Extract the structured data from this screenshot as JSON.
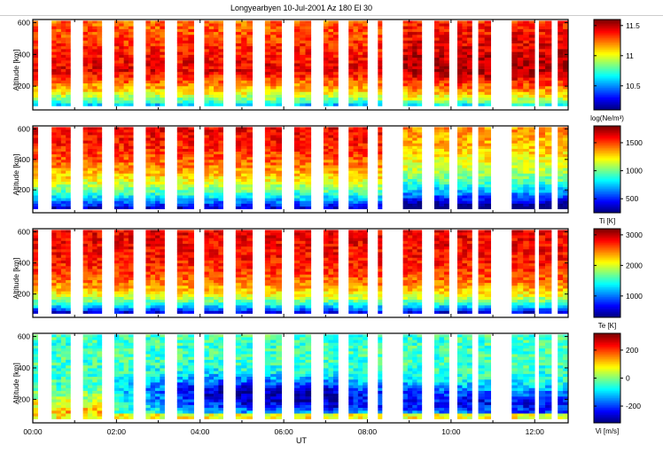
{
  "chart_data": {
    "type": "heatmap",
    "title": "Longyearbyen 10-Jul-2001 Az 180 El 30",
    "xlabel": "UT",
    "x_unit": "hours UT",
    "xlim": [
      0,
      12.8
    ],
    "x_ticks": [
      {
        "value": 0,
        "label": "00:00"
      },
      {
        "value": 2,
        "label": "02:00"
      },
      {
        "value": 4,
        "label": "04:00"
      },
      {
        "value": 6,
        "label": "06:00"
      },
      {
        "value": 8,
        "label": "08:00"
      },
      {
        "value": 10,
        "label": "10:00"
      },
      {
        "value": 12,
        "label": "12:00"
      }
    ],
    "x_minor_ticks": [
      1,
      3,
      5,
      7,
      9,
      11
    ],
    "scans": [
      [
        0.0,
        0.12
      ],
      [
        0.45,
        0.9
      ],
      [
        1.2,
        1.65
      ],
      [
        1.95,
        2.4
      ],
      [
        2.7,
        3.15
      ],
      [
        3.45,
        3.85
      ],
      [
        4.1,
        4.55
      ],
      [
        4.85,
        5.25
      ],
      [
        5.55,
        5.95
      ],
      [
        6.25,
        6.65
      ],
      [
        6.95,
        7.3
      ],
      [
        7.55,
        8.0
      ],
      [
        8.25,
        8.35
      ],
      [
        8.85,
        9.3
      ],
      [
        9.6,
        9.95
      ],
      [
        10.15,
        10.5
      ],
      [
        10.65,
        10.95
      ],
      [
        11.45,
        12.0
      ],
      [
        12.1,
        12.4
      ],
      [
        12.55,
        12.8
      ]
    ],
    "panels": [
      {
        "id": "ne",
        "ylabel": "Altitude [km]",
        "ylim": [
          50,
          620
        ],
        "y_ticks": [
          200,
          400,
          600
        ],
        "colorbar": {
          "label": "log(Ne/m³)",
          "clim": [
            10.1,
            11.6
          ],
          "ticks": [
            {
              "value": 11.5,
              "label": "11.5"
            },
            {
              "value": 11,
              "label": "11"
            },
            {
              "value": 10.5,
              "label": "10.5"
            }
          ]
        },
        "profile": {
          "bottom_km": 75,
          "peak_km": 300,
          "low": 10.3,
          "peak": 11.45,
          "top": 11.25,
          "noise": 0.12
        }
      },
      {
        "id": "ti",
        "ylabel": "Altitude [km]",
        "ylim": [
          50,
          620
        ],
        "y_ticks": [
          200,
          400,
          600
        ],
        "colorbar": {
          "label": "Ti [K]",
          "clim": [
            250,
            1800
          ],
          "ticks": [
            {
              "value": 1500,
              "label": "1500"
            },
            {
              "value": 1000,
              "label": "1000"
            },
            {
              "value": 500,
              "label": "500"
            }
          ]
        },
        "profile": {
          "bottom_km": 75,
          "low": 300,
          "top": 1700,
          "scale_km": 180,
          "noise": 120
        }
      },
      {
        "id": "te",
        "ylabel": "Altitude [km]",
        "ylim": [
          50,
          620
        ],
        "y_ticks": [
          200,
          400,
          600
        ],
        "colorbar": {
          "label": "Te [K]",
          "clim": [
            300,
            3200
          ],
          "ticks": [
            {
              "value": 3000,
              "label": "3000"
            },
            {
              "value": 2000,
              "label": "2000"
            },
            {
              "value": 1000,
              "label": "1000"
            }
          ]
        },
        "profile": {
          "bottom_km": 75,
          "low": 400,
          "top": 2900,
          "scale_km": 110,
          "noise": 220
        }
      },
      {
        "id": "vi",
        "ylabel": "Altitude [km]",
        "ylim": [
          50,
          620
        ],
        "y_ticks": [
          200,
          400,
          600
        ],
        "colorbar": {
          "label": "Vi [m/s]",
          "clim": [
            -320,
            320
          ],
          "ticks": [
            {
              "value": 200,
              "label": "200"
            },
            {
              "value": 0,
              "label": "0"
            },
            {
              "value": -200,
              "label": "-200"
            }
          ]
        },
        "profile": {
          "bottom_km": 75,
          "low": 20,
          "top": -40,
          "trough": -260,
          "noise": 60
        }
      }
    ]
  }
}
